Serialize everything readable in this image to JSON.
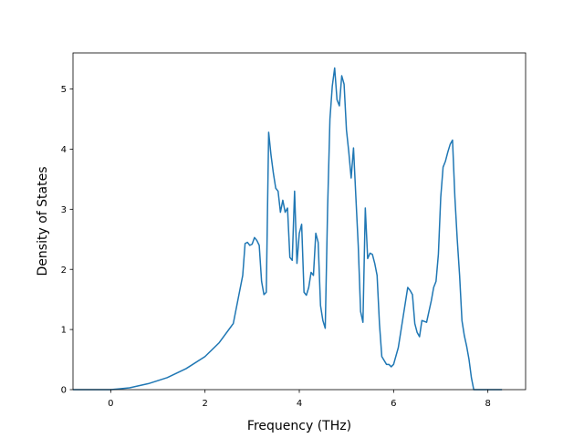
{
  "chart_data": {
    "type": "line",
    "title": "",
    "xlabel": "Frequency (THz)",
    "ylabel": "Density of States",
    "xlim": [
      -0.8,
      8.8
    ],
    "ylim": [
      0,
      5.6
    ],
    "grid": false,
    "legend": "none",
    "xticks": [
      0,
      2,
      4,
      6,
      8
    ],
    "yticks": [
      0,
      1,
      2,
      3,
      4,
      5
    ],
    "series": [
      {
        "color": "#1f77b4",
        "x": [
          -0.8,
          -0.2,
          0,
          0.4,
          0.8,
          1.2,
          1.6,
          2.0,
          2.3,
          2.6,
          2.7,
          2.8,
          2.85,
          2.9,
          2.95,
          3.0,
          3.05,
          3.1,
          3.15,
          3.2,
          3.25,
          3.3,
          3.35,
          3.4,
          3.45,
          3.5,
          3.55,
          3.6,
          3.65,
          3.7,
          3.75,
          3.8,
          3.85,
          3.9,
          3.95,
          4.0,
          4.05,
          4.1,
          4.15,
          4.2,
          4.25,
          4.3,
          4.35,
          4.4,
          4.45,
          4.5,
          4.55,
          4.6,
          4.65,
          4.7,
          4.75,
          4.8,
          4.85,
          4.9,
          4.95,
          5.0,
          5.05,
          5.1,
          5.15,
          5.2,
          5.25,
          5.3,
          5.35,
          5.4,
          5.45,
          5.5,
          5.55,
          5.6,
          5.65,
          5.7,
          5.75,
          5.85,
          5.9,
          5.95,
          6.0,
          6.1,
          6.2,
          6.25,
          6.3,
          6.35,
          6.4,
          6.45,
          6.5,
          6.55,
          6.6,
          6.7,
          6.75,
          6.8,
          6.85,
          6.9,
          6.95,
          7.0,
          7.05,
          7.1,
          7.15,
          7.2,
          7.25,
          7.3,
          7.35,
          7.4,
          7.45,
          7.5,
          7.55,
          7.6,
          7.65,
          7.7,
          7.8,
          8.0,
          8.3
        ],
        "y": [
          0,
          0,
          0,
          0.03,
          0.1,
          0.2,
          0.35,
          0.55,
          0.78,
          1.1,
          1.5,
          1.9,
          2.43,
          2.45,
          2.4,
          2.42,
          2.53,
          2.48,
          2.4,
          1.8,
          1.58,
          1.62,
          4.28,
          3.9,
          3.6,
          3.35,
          3.3,
          2.95,
          3.15,
          2.95,
          3.02,
          2.2,
          2.15,
          3.3,
          2.1,
          2.6,
          2.75,
          1.62,
          1.57,
          1.7,
          1.95,
          1.9,
          2.6,
          2.45,
          1.4,
          1.15,
          1.02,
          3.0,
          4.5,
          5.05,
          5.35,
          4.82,
          4.72,
          5.22,
          5.08,
          4.32,
          3.95,
          3.52,
          4.02,
          3.2,
          2.4,
          1.3,
          1.12,
          3.02,
          2.18,
          2.27,
          2.25,
          2.1,
          1.9,
          1.1,
          0.55,
          0.42,
          0.42,
          0.38,
          0.42,
          0.7,
          1.2,
          1.45,
          1.7,
          1.65,
          1.58,
          1.1,
          0.95,
          0.88,
          1.15,
          1.12,
          1.3,
          1.48,
          1.7,
          1.8,
          2.25,
          3.2,
          3.7,
          3.8,
          3.95,
          4.08,
          4.15,
          3.2,
          2.5,
          1.9,
          1.15,
          0.9,
          0.72,
          0.5,
          0.2,
          0,
          0,
          0,
          0
        ]
      }
    ]
  }
}
